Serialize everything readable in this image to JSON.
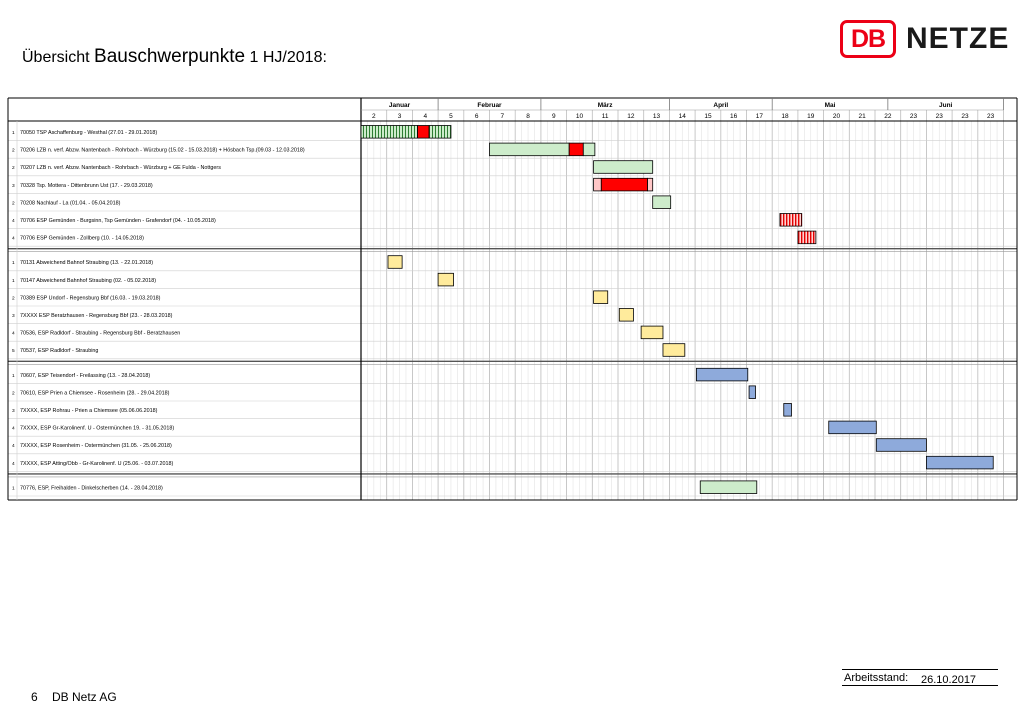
{
  "header": {
    "title_prefix": "Übersicht",
    "title_main": "Bauschwerpunkte",
    "title_suffix": "1 HJ/2018:",
    "logo_mark": "DB",
    "logo_text": "NETZE",
    "brand_color": "#ec0016"
  },
  "chart_data": {
    "type": "gantt",
    "months": [
      {
        "label": "Januar",
        "start_week": 2,
        "end_week": 5
      },
      {
        "label": "Februar",
        "start_week": 5,
        "end_week": 9
      },
      {
        "label": "März",
        "start_week": 9,
        "end_week": 14
      },
      {
        "label": "April",
        "start_week": 14,
        "end_week": 18
      },
      {
        "label": "Mai",
        "start_week": 18,
        "end_week": 22.5
      },
      {
        "label": "Juni",
        "start_week": 22.5,
        "end_week": 27
      }
    ],
    "week_labels": [
      "2",
      "3",
      "4",
      "5",
      "6",
      "7",
      "8",
      "9",
      "10",
      "11",
      "12",
      "13",
      "14",
      "15",
      "16",
      "17",
      "18",
      "19",
      "20",
      "21",
      "22",
      "23",
      "23",
      "23",
      "23"
    ],
    "groups": [
      {
        "rows": [
          {
            "prio": "1",
            "label": "70050 TSP Aschaffenburg - Westhal (27.01 - 29.01.2018)",
            "bars": [
              {
                "start": 2,
                "end": 4.2,
                "style": "hatch-green"
              },
              {
                "start": 4.2,
                "end": 4.65,
                "style": "red"
              },
              {
                "start": 4.65,
                "end": 5.5,
                "style": "hatch-green"
              }
            ]
          },
          {
            "prio": "2",
            "label": "70206 LZB n. verf. Abzw. Nantenbach - Rohrbach - Würzburg (15.02 - 15.03.2018) + Hösbach Tsp.(09.03 - 12.03.2018)",
            "bars": [
              {
                "start": 7,
                "end": 10.1,
                "style": "green"
              },
              {
                "start": 10.1,
                "end": 10.65,
                "style": "red"
              },
              {
                "start": 10.65,
                "end": 11.1,
                "style": "green"
              }
            ]
          },
          {
            "prio": "2",
            "label": "70207 LZB n. verf. Abzw. Nantenbach - Rohrbach - Würzburg + GE Fulda - Nottgers",
            "bars": [
              {
                "start": 11.05,
                "end": 13.35,
                "style": "green"
              }
            ]
          },
          {
            "prio": "3",
            "label": "70328 Tsp. Mottera - Dittenbrunn Ust (17. - 29.03.2018)",
            "bars": [
              {
                "start": 11.05,
                "end": 11.35,
                "style": "pink"
              },
              {
                "start": 11.35,
                "end": 13.15,
                "style": "red"
              },
              {
                "start": 13.15,
                "end": 13.35,
                "style": "pink"
              }
            ]
          },
          {
            "prio": "2",
            "label": "70208 Nachlauf - La (01.04. - 05.04.2018)",
            "bars": [
              {
                "start": 13.35,
                "end": 14.05,
                "style": "green"
              }
            ]
          },
          {
            "prio": "4",
            "label": "70706 ESP Gemünden - Burgsinn, Tsp Gemünden - Grafendorf (04. - 10.05.2018)",
            "bars": [
              {
                "start": 18.3,
                "end": 19.15,
                "style": "hatch-red"
              }
            ]
          },
          {
            "prio": "4",
            "label": "70706 ESP Gemünden - Zollberg (10. - 14.05.2018)",
            "bars": [
              {
                "start": 19.0,
                "end": 19.7,
                "style": "hatch-red"
              }
            ]
          }
        ]
      },
      {
        "rows": [
          {
            "prio": "1",
            "label": "70131 Abweichend Bahnof Straubing (13. - 22.01.2018)",
            "bars": [
              {
                "start": 3.05,
                "end": 3.6,
                "style": "yellow"
              }
            ]
          },
          {
            "prio": "1",
            "label": "70147 Abweichend Bahnhof Straubing (02. - 05.02.2018)",
            "bars": [
              {
                "start": 5.0,
                "end": 5.6,
                "style": "yellow"
              }
            ]
          },
          {
            "prio": "2",
            "label": "70389 ESP Undorf - Regensburg Bbf (16.03. - 19.03.2018)",
            "bars": [
              {
                "start": 11.05,
                "end": 11.6,
                "style": "yellow"
              }
            ]
          },
          {
            "prio": "3",
            "label": "7XXXX ESP Beratzhausen - Regensburg Bbf (23. - 28.03.2018)",
            "bars": [
              {
                "start": 12.05,
                "end": 12.6,
                "style": "yellow"
              }
            ]
          },
          {
            "prio": "4",
            "label": "70536, ESP Radldorf - Straubing - Regensburg Bbf - Beratzhausen",
            "bars": [
              {
                "start": 12.9,
                "end": 13.75,
                "style": "yellow"
              }
            ]
          },
          {
            "prio": "5",
            "label": "70537, ESP Radldorf - Straubing",
            "bars": [
              {
                "start": 13.75,
                "end": 14.6,
                "style": "yellow"
              }
            ]
          }
        ]
      },
      {
        "rows": [
          {
            "prio": "1",
            "label": "70607, ESP Teisendorf - Freilassing (13. - 28.04.2018)",
            "bars": [
              {
                "start": 15.05,
                "end": 17.05,
                "style": "blue"
              }
            ]
          },
          {
            "prio": "2",
            "label": "70610, ESP Prien a Chiemsee - Rosenheim (28. - 29.04.2018)",
            "bars": [
              {
                "start": 17.1,
                "end": 17.35,
                "style": "blue"
              }
            ]
          },
          {
            "prio": "3",
            "label": "7XXXX, ESP Rohrau - Prien a Chiemsee (05.06.06.2018)",
            "bars": [
              {
                "start": 18.45,
                "end": 18.75,
                "style": "blue"
              }
            ]
          },
          {
            "prio": "4",
            "label": "7XXXX, ESP Gr-Karolinenf. U - Ostermünchen 19. - 31.05.2018)",
            "bars": [
              {
                "start": 20.2,
                "end": 22.05,
                "style": "blue"
              }
            ]
          },
          {
            "prio": "4",
            "label": "7XXXX, ESP Rosenheim - Ostermünchen (31.05. - 25.06.2018)",
            "bars": [
              {
                "start": 22.05,
                "end": 24.0,
                "style": "blue"
              }
            ]
          },
          {
            "prio": "4",
            "label": "7XXXX, ESP Atting/Obb - Gr-Karolinenf. U (25.06. - 03.07.2018)",
            "bars": [
              {
                "start": 24.0,
                "end": 26.6,
                "style": "blue"
              }
            ]
          }
        ]
      },
      {
        "rows": [
          {
            "prio": "1",
            "label": "70776, ESP, Freihalden - Dinkelscherben (14. - 28.04.2018)",
            "bars": [
              {
                "start": 15.2,
                "end": 17.4,
                "style": "green"
              }
            ]
          }
        ]
      }
    ]
  },
  "footer": {
    "stand_label": "Arbeitsstand:",
    "stand_date": "26.10.2017",
    "page_number": "6",
    "organisation": "DB Netz AG"
  }
}
